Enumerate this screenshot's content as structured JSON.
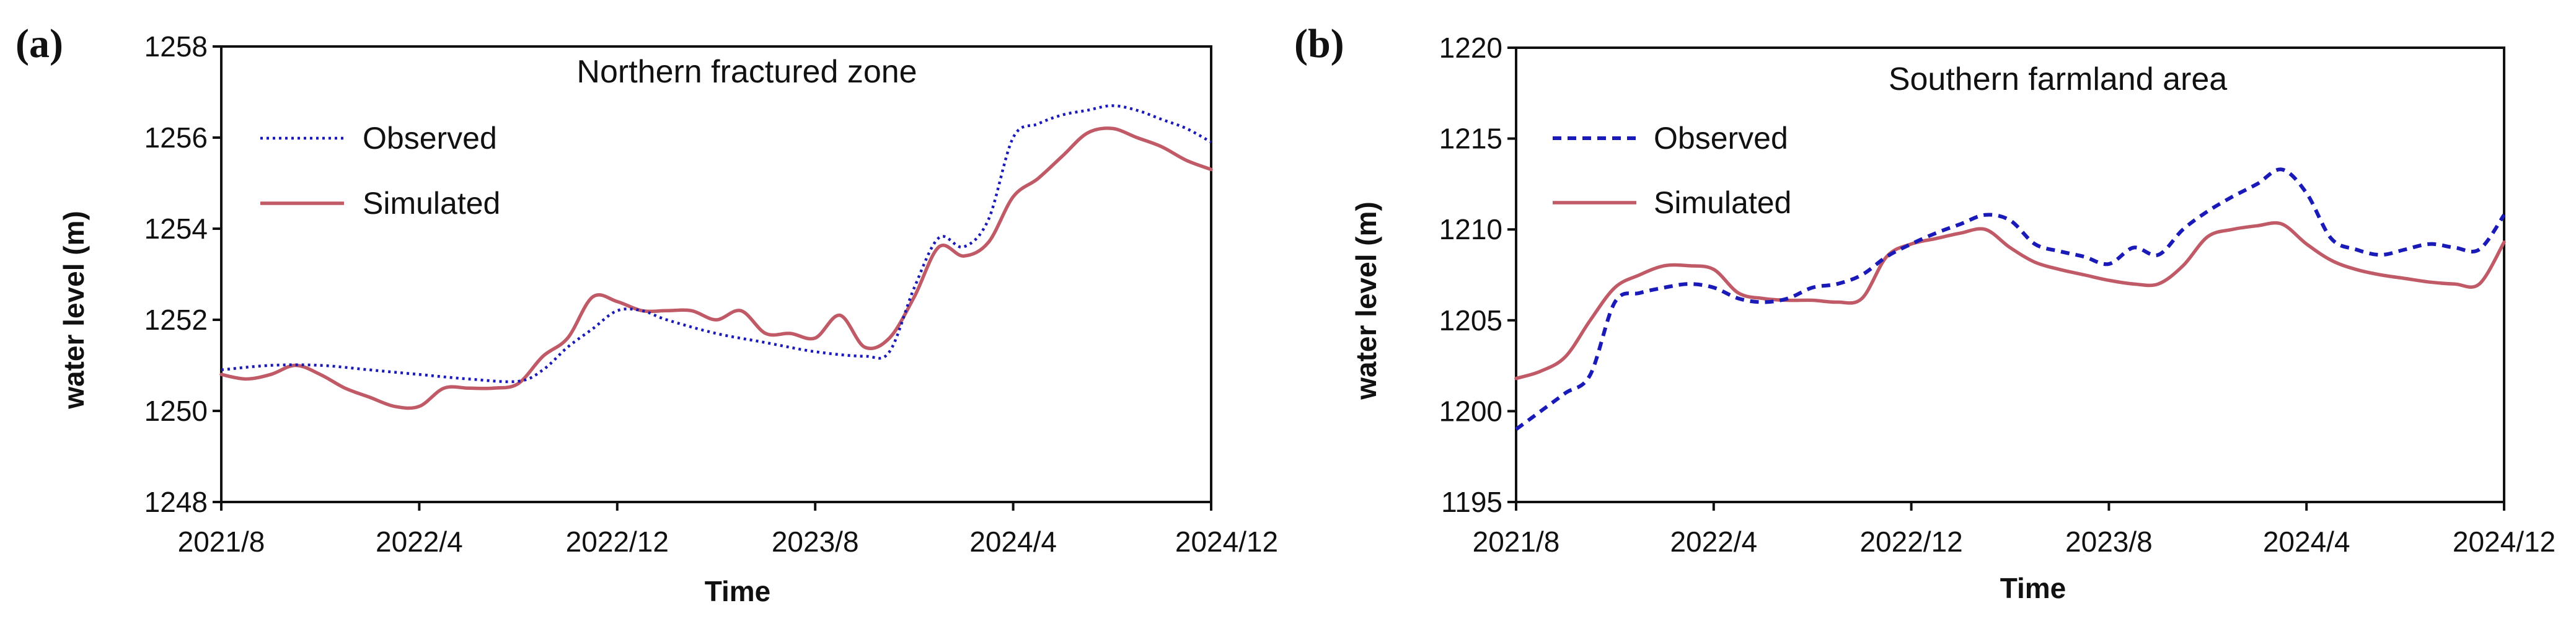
{
  "chart_data": [
    {
      "type": "line",
      "panel_label": "(a)",
      "title": "Northern fractured zone",
      "xlabel": "Time",
      "ylabel": "water level (m)",
      "ylim": [
        1248,
        1258
      ],
      "yticks": [
        1248,
        1250,
        1252,
        1254,
        1256,
        1258
      ],
      "xlim": [
        0,
        40
      ],
      "xticks": [
        {
          "x": 0,
          "label": "2021/8"
        },
        {
          "x": 8,
          "label": "2022/4"
        },
        {
          "x": 16,
          "label": "2022/12"
        },
        {
          "x": 24,
          "label": "2023/8"
        },
        {
          "x": 32,
          "label": "2024/4"
        },
        {
          "x": 40,
          "label": "2024/12"
        }
      ],
      "legend_position": "upper-left",
      "series": [
        {
          "name": "Observed",
          "style": "dotted",
          "color": "#1a1ab8",
          "x": [
            0,
            2,
            4,
            6,
            8,
            10,
            12,
            13,
            14,
            15,
            16,
            17,
            18,
            20,
            22,
            24,
            26,
            27,
            28,
            29,
            30,
            31,
            32,
            33,
            34,
            35,
            36,
            37,
            38,
            39,
            40
          ],
          "y": [
            1250.9,
            1251.0,
            1251.0,
            1250.9,
            1250.8,
            1250.7,
            1250.65,
            1250.9,
            1251.4,
            1251.8,
            1252.2,
            1252.2,
            1252.0,
            1251.7,
            1251.5,
            1251.3,
            1251.2,
            1251.3,
            1252.7,
            1253.8,
            1253.6,
            1254.2,
            1256.0,
            1256.3,
            1256.5,
            1256.6,
            1256.7,
            1256.6,
            1256.4,
            1256.2,
            1255.9
          ]
        },
        {
          "name": "Simulated",
          "style": "solid",
          "color": "#c05a66",
          "x": [
            0,
            1,
            2,
            3,
            4,
            5,
            6,
            7,
            8,
            9,
            10,
            11,
            12,
            13,
            14,
            15,
            16,
            17,
            18,
            19,
            20,
            21,
            22,
            23,
            24,
            25,
            26,
            27,
            28,
            29,
            30,
            31,
            32,
            33,
            34,
            35,
            36,
            37,
            38,
            39,
            40
          ],
          "y": [
            1250.8,
            1250.7,
            1250.8,
            1251.0,
            1250.8,
            1250.5,
            1250.3,
            1250.1,
            1250.1,
            1250.5,
            1250.5,
            1250.5,
            1250.6,
            1251.2,
            1251.6,
            1252.5,
            1252.4,
            1252.2,
            1252.2,
            1252.2,
            1252.0,
            1252.2,
            1251.7,
            1251.7,
            1251.6,
            1252.1,
            1251.4,
            1251.6,
            1252.5,
            1253.6,
            1253.4,
            1253.7,
            1254.7,
            1255.1,
            1255.6,
            1256.1,
            1256.2,
            1256.0,
            1255.8,
            1255.5,
            1255.3
          ]
        }
      ]
    },
    {
      "type": "line",
      "panel_label": "(b)",
      "title": "Southern farmland area",
      "xlabel": "Time",
      "ylabel": "water level (m)",
      "ylim": [
        1195,
        1220
      ],
      "yticks": [
        1195,
        1200,
        1205,
        1210,
        1215,
        1220
      ],
      "xlim": [
        0,
        40
      ],
      "xticks": [
        {
          "x": 0,
          "label": "2021/8"
        },
        {
          "x": 8,
          "label": "2022/4"
        },
        {
          "x": 16,
          "label": "2022/12"
        },
        {
          "x": 24,
          "label": "2023/8"
        },
        {
          "x": 32,
          "label": "2024/4"
        },
        {
          "x": 40,
          "label": "2024/12"
        }
      ],
      "legend_position": "upper-left",
      "series": [
        {
          "name": "Observed",
          "style": "dashed",
          "color": "#1a1ab8",
          "x": [
            0,
            1,
            2,
            3,
            4,
            5,
            6,
            7,
            8,
            9,
            10,
            11,
            12,
            13,
            14,
            15,
            16,
            17,
            18,
            19,
            20,
            21,
            22,
            23,
            24,
            25,
            26,
            27,
            28,
            29,
            30,
            31,
            32,
            33,
            34,
            35,
            36,
            37,
            38,
            39,
            40
          ],
          "y": [
            1199.0,
            1200.0,
            1201.0,
            1202.0,
            1206.0,
            1206.5,
            1206.8,
            1207.0,
            1206.8,
            1206.2,
            1206.0,
            1206.2,
            1206.8,
            1207.0,
            1207.5,
            1208.5,
            1209.2,
            1209.8,
            1210.3,
            1210.8,
            1210.5,
            1209.2,
            1208.8,
            1208.5,
            1208.1,
            1209.0,
            1208.6,
            1210.0,
            1211.0,
            1211.8,
            1212.5,
            1213.3,
            1212.0,
            1209.5,
            1208.9,
            1208.6,
            1208.9,
            1209.2,
            1209.0,
            1208.9,
            1210.8
          ]
        },
        {
          "name": "Simulated",
          "style": "solid",
          "color": "#c05a66",
          "x": [
            0,
            1,
            2,
            3,
            4,
            5,
            6,
            7,
            8,
            9,
            10,
            11,
            12,
            13,
            14,
            15,
            16,
            17,
            18,
            19,
            20,
            21,
            22,
            23,
            24,
            25,
            26,
            27,
            28,
            29,
            30,
            31,
            32,
            33,
            34,
            35,
            36,
            37,
            38,
            39,
            40
          ],
          "y": [
            1201.8,
            1202.2,
            1203.0,
            1205.0,
            1206.8,
            1207.5,
            1208.0,
            1208.0,
            1207.8,
            1206.5,
            1206.2,
            1206.1,
            1206.1,
            1206.0,
            1206.2,
            1208.5,
            1209.2,
            1209.5,
            1209.8,
            1210.0,
            1209.0,
            1208.2,
            1207.8,
            1207.5,
            1207.2,
            1207.0,
            1207.0,
            1208.0,
            1209.6,
            1210.0,
            1210.2,
            1210.3,
            1209.2,
            1208.3,
            1207.8,
            1207.5,
            1207.3,
            1207.1,
            1207.0,
            1207.0,
            1209.3
          ]
        }
      ]
    }
  ]
}
